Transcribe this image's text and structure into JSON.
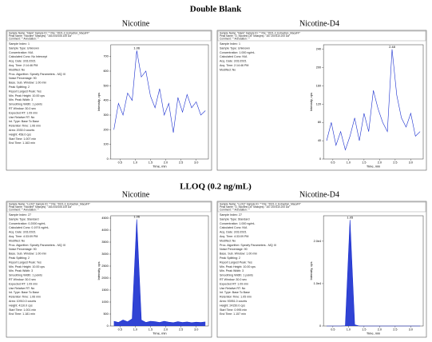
{
  "sections": [
    {
      "heading": "Double Blank",
      "panels": [
        {
          "label": "Nicotine",
          "header": [
            "Sample Name: \"blank\"  Sample ID: \"\"  File: \"2021-3_Extraction_MacaFF\"",
            "Peak Name: \"Nicotine\"  Mass(es): \"163.000/106.100 Da\"",
            "Comment: \"\"  Annotation: \"\""
          ],
          "info": [
            "Sample Index: 1",
            "Sample Type: Unknown",
            "Concentration: N/A",
            "Calculated Conc: No Intercept",
            "Acq. Date: 3/31/2021",
            "Acq. Time: 2:14:46 PM",
            "Modified: No",
            "Proc. Algorithm: Specify Parameters - MQ III",
            "Noise Percentage: 90",
            "Base. Sub. Window: 1.00 min",
            "Peak Splitting: 2",
            "Report Largest Peak: Yes",
            "Min. Peak Height: 10.00 cps",
            "Min. Peak Width: 3",
            "Smoothing Width: 1 points",
            "RT Window: 30.0 sec",
            "Expected RT: 1.09 min",
            "Use Relative RT: No",
            "Int. Type: Base To Base",
            "Retention Time: 1.06 min",
            "Area: 2030.0 counts",
            "Height: 458.0 cps",
            "Start Time: 1.007 min",
            "End Time: 1.163 min"
          ],
          "chart": {
            "peak_label": "1.06",
            "xlabel": "Time, min",
            "ylabel": "Intensity, cps",
            "xlim": [
              0.2,
              3.4
            ],
            "ylim": [
              0,
              780
            ],
            "xticks": [
              {
                "value": 0.5,
                "label": "0.5"
              },
              {
                "value": 1,
                "label": "1.0"
              },
              {
                "value": 1.5,
                "label": "1.5"
              },
              {
                "value": 2,
                "label": "2.0"
              },
              {
                "value": 2.5,
                "label": "2.5"
              },
              {
                "value": 3,
                "label": "3.0"
              }
            ],
            "yticks": [
              0,
              100,
              200,
              300,
              400,
              500,
              600,
              700
            ],
            "x": [
              0.3,
              0.45,
              0.6,
              0.75,
              0.9,
              1.05,
              1.2,
              1.35,
              1.5,
              1.65,
              1.8,
              1.95,
              2.1,
              2.25,
              2.4,
              2.55,
              2.7,
              2.85,
              3.0,
              3.15,
              3.3
            ],
            "values": [
              200,
              380,
              300,
              450,
              400,
              740,
              560,
              600,
              430,
              350,
              480,
              300,
              380,
              180,
              420,
              320,
              440,
              350,
              390,
              300,
              330
            ]
          }
        },
        {
          "label": "Nicotine-D4",
          "header": [
            "Sample Name: \"blank\"  Sample ID: \"\"  File: \"2021-3_Extraction_MacaFF\"",
            "Peak Name: \"D_Nicotine-D4\"  Mass(es): \"167.200/110.200 Da\"",
            "Comment: \"\"  Annotation: \"\""
          ],
          "info": [
            "Sample Index: 1",
            "Sample Type: Unknown",
            "Concentration: 1.000 ng/mL",
            "Calculated Conc: N/A",
            "Acq. Date: 3/31/2021",
            "Acq. Time: 2:14:46 PM",
            "Modified: No"
          ],
          "chart": {
            "peak_label": "2.48",
            "xlabel": "Time, min",
            "ylabel": "Intensity, cps",
            "xlim": [
              0.2,
              3.4
            ],
            "ylim": [
              0,
              250
            ],
            "xticks": [
              {
                "value": 0.5,
                "label": "0.5"
              },
              {
                "value": 1,
                "label": "1.0"
              },
              {
                "value": 1.5,
                "label": "1.5"
              },
              {
                "value": 2,
                "label": "2.0"
              },
              {
                "value": 2.5,
                "label": "2.5"
              },
              {
                "value": 3,
                "label": "3.0"
              }
            ],
            "yticks": [
              0,
              40,
              80,
              120,
              160,
              200,
              240
            ],
            "x": [
              0.3,
              0.45,
              0.6,
              0.75,
              0.9,
              1.05,
              1.2,
              1.35,
              1.5,
              1.65,
              1.8,
              1.95,
              2.1,
              2.25,
              2.4,
              2.55,
              2.7,
              2.85,
              3.0,
              3.15,
              3.3
            ],
            "values": [
              40,
              80,
              30,
              60,
              20,
              50,
              90,
              40,
              100,
              60,
              150,
              110,
              80,
              60,
              240,
              140,
              90,
              70,
              100,
              50,
              60
            ]
          }
        }
      ]
    },
    {
      "heading": "LLOQ (0.2 ng/mL)",
      "panels": [
        {
          "label": "Nicotine",
          "header": [
            "Sample Name: \"LLOQ\"  Sample ID: \"\"  File: \"2021-3_Extraction_MacaFF\"",
            "Peak Name: \"Nicotine\"  Mass(es): \"163.000/106.100 Da\"",
            "Comment: \"\"  Annotation: \"\""
          ],
          "info": [
            "Sample Index: 27",
            "Sample Type: Standard",
            "Concentration: 0.2000 ng/mL",
            "Calculated Conc: 0.1974 ng/mL",
            "Acq. Date: 3/31/2021",
            "Acq. Time: 4:33:09 PM",
            "Modified: No",
            "Proc. Algorithm: Specify Parameters - MQ III",
            "Noise Percentage: 90",
            "Base. Sub. Window: 1.00 min",
            "Peak Splitting: 2",
            "Report Largest Peak: Yes",
            "Min. Peak Height: 10.00 cps",
            "Min. Peak Width: 3",
            "Smoothing Width: 1 points",
            "RT Window: 30.0 sec",
            "Expected RT: 1.09 min",
            "Use Relative RT: No",
            "Int. Type: Base To Base",
            "Retention Time: 1.06 min",
            "Area: 10910.0 counts",
            "Height: 4110.0 cps",
            "Start Time: 1.001 min",
            "End Time: 1.181 min"
          ],
          "chart": {
            "peak_label": "1.06",
            "xlabel": "Time, min",
            "ylabel": "Intensity, cps",
            "xlim": [
              0.2,
              3.4
            ],
            "ylim": [
              0,
              4600
            ],
            "xticks": [
              {
                "value": 0.5,
                "label": "0.5"
              },
              {
                "value": 1,
                "label": "1.0"
              },
              {
                "value": 1.5,
                "label": "1.5"
              },
              {
                "value": 2,
                "label": "2.0"
              },
              {
                "value": 2.5,
                "label": "2.5"
              },
              {
                "value": 3,
                "label": "3.0"
              }
            ],
            "yticks": [
              0,
              500,
              1000,
              1500,
              2000,
              2500,
              3000,
              3500,
              4000,
              4500
            ],
            "x": [
              0.3,
              0.45,
              0.6,
              0.75,
              0.9,
              1.05,
              1.2,
              1.35,
              1.5,
              1.65,
              1.8,
              1.95,
              2.1,
              2.25,
              2.4,
              2.55,
              2.7,
              2.85,
              3.0,
              3.15,
              3.3
            ],
            "values": [
              200,
              150,
              250,
              180,
              300,
              4450,
              250,
              150,
              200,
              180,
              150,
              200,
              160,
              140,
              180,
              150,
              170,
              140,
              160,
              150,
              170
            ]
          }
        },
        {
          "label": "Nicotine-D4",
          "header": [
            "Sample Name: \"LLOQ\"  Sample ID: \"\"  File: \"2021-3_Extraction_MacaFF\"",
            "Peak Name: \"D_Nicotine-D4\"  Mass(es): \"167.200/110.200 Da\"",
            "Comment: \"\"  Annotation: \"\""
          ],
          "info": [
            "Sample Index: 27",
            "Sample Type: Standard",
            "Concentration: 1.000 ng/mL",
            "Calculated Conc: N/A",
            "Acq. Date: 3/31/2021",
            "Acq. Time: 4:33:09 PM",
            "Modified: No",
            "Proc. Algorithm: Specify Parameters - MQ III",
            "Noise Percentage: 90",
            "Base. Sub. Window: 1.00 min",
            "Peak Splitting: 2",
            "Report Largest Peak: Yes",
            "Min. Peak Height: 10.00 cps",
            "Min. Peak Width: 3",
            "Smoothing Width: 1 points",
            "RT Window: 30.0 sec",
            "Expected RT: 1.09 min",
            "Use Relative RT: No",
            "Int. Type: Base To Base",
            "Retention Time: 1.05 min",
            "Area: 93951.0 counts",
            "Height: 24150.0 cps",
            "Start Time: 0.995 min",
            "End Time: 1.157 min"
          ],
          "chart": {
            "peak_label": "1.05",
            "xlabel": "Time, min",
            "ylabel": "Intensity, cps",
            "xlim": [
              0.2,
              3.4
            ],
            "ylim": [
              0,
              26000
            ],
            "xticks": [
              {
                "value": 0.5,
                "label": "0.5"
              },
              {
                "value": 1,
                "label": "1.0"
              },
              {
                "value": 1.5,
                "label": "1.5"
              },
              {
                "value": 2,
                "label": "2.0"
              },
              {
                "value": 2.5,
                "label": "2.5"
              },
              {
                "value": 3,
                "label": "3.0"
              }
            ],
            "yticks": [
              0,
              {
                "value": 10000,
                "label": "1.0e4"
              },
              {
                "value": 20000,
                "label": "2.0e4"
              }
            ],
            "x": [
              0.3,
              0.45,
              0.6,
              0.75,
              0.9,
              1.05,
              1.2,
              1.35,
              1.5,
              1.65,
              1.8,
              1.95,
              2.1,
              2.25,
              2.4,
              2.55,
              2.7,
              2.85,
              3.0,
              3.15,
              3.3
            ],
            "values": [
              0,
              0,
              0,
              0,
              50,
              25000,
              300,
              0,
              0,
              0,
              0,
              0,
              0,
              0,
              0,
              0,
              0,
              0,
              0,
              0,
              0
            ]
          }
        }
      ]
    }
  ]
}
